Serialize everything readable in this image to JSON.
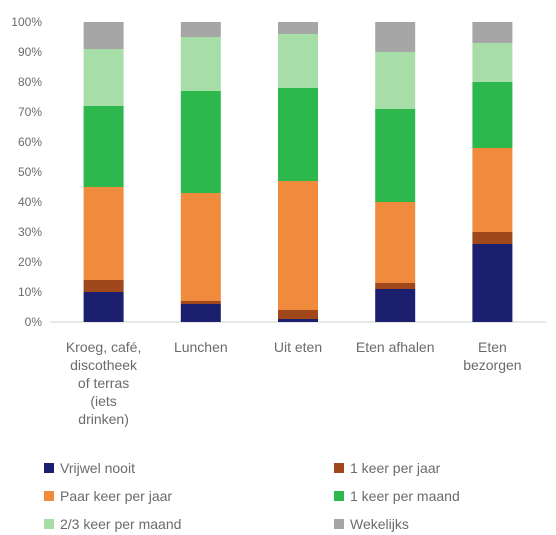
{
  "chart_data": {
    "type": "bar",
    "stacked": true,
    "categories": [
      [
        "Kroeg, café,",
        "discotheek",
        "of terras",
        "(iets",
        "drinken)"
      ],
      [
        "Lunchen"
      ],
      [
        "Uit eten"
      ],
      [
        "Eten afhalen"
      ],
      [
        "Eten",
        "bezorgen"
      ]
    ],
    "y_ticks": [
      "0%",
      "10%",
      "20%",
      "30%",
      "40%",
      "50%",
      "60%",
      "70%",
      "80%",
      "90%",
      "100%"
    ],
    "ylim": [
      0,
      100
    ],
    "series": [
      {
        "name": "Vrijwel nooit",
        "color": "#1b1f6e",
        "values": [
          10,
          6,
          1,
          11,
          26
        ]
      },
      {
        "name": "1 keer per jaar",
        "color": "#a0471b",
        "values": [
          4,
          1,
          3,
          2,
          4
        ]
      },
      {
        "name": "Paar keer per jaar",
        "color": "#f08a3c",
        "values": [
          31,
          36,
          43,
          27,
          28
        ]
      },
      {
        "name": "1 keer per maand",
        "color": "#2cb84c",
        "values": [
          27,
          34,
          31,
          31,
          22
        ]
      },
      {
        "name": "2/3 keer per maand",
        "color": "#a7dea8",
        "values": [
          19,
          18,
          18,
          19,
          13
        ]
      },
      {
        "name": "Wekelijks",
        "color": "#a6a6a6",
        "values": [
          9,
          5,
          4,
          10,
          7
        ]
      }
    ],
    "legend": [
      [
        "Vrijwel nooit",
        "1 keer per jaar"
      ],
      [
        "Paar keer per jaar",
        "1 keer per maand"
      ],
      [
        "2/3 keer per maand",
        "Wekelijks"
      ]
    ],
    "grid": false,
    "legend_position": "bottom"
  }
}
